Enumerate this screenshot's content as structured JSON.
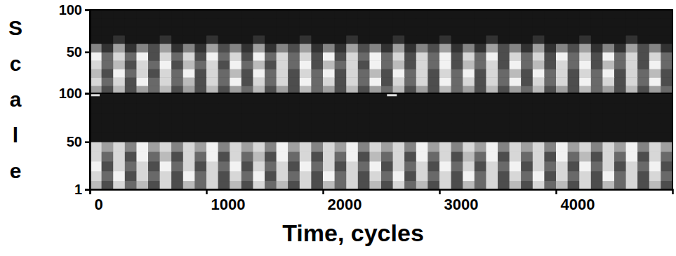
{
  "chart_data": [
    {
      "type": "heatmap",
      "ylabel": "Scale",
      "tick_labels": "y",
      "xlim": [
        0,
        5000
      ],
      "ylim": [
        1,
        100
      ],
      "yticks": [
        50,
        100
      ],
      "x_edges": [
        0,
        100,
        200,
        300,
        400,
        500,
        600,
        700,
        800,
        900,
        1000,
        1100,
        1200,
        1300,
        1400,
        1500,
        1600,
        1700,
        1800,
        1900,
        2000,
        2100,
        2200,
        2300,
        2400,
        2500,
        2600,
        2700,
        2800,
        2900,
        3000,
        3100,
        3200,
        3300,
        3400,
        3500,
        3600,
        3700,
        3800,
        3900,
        4000,
        4100,
        4200,
        4300,
        4400,
        4500,
        4600,
        4700,
        4800,
        4900,
        5000
      ],
      "y_edges": [
        1,
        10,
        20,
        30,
        40,
        50,
        60,
        70,
        80,
        90,
        100
      ],
      "cells": [
        [
          0.6,
          0.3,
          0.7,
          0.3,
          0.6,
          0.4,
          0.7,
          0.3,
          0.6,
          0.3,
          0.7,
          0.3,
          0.6,
          0.4,
          0.7,
          0.3,
          0.6,
          0.3,
          0.7,
          0.4,
          0.6,
          0.3,
          0.7,
          0.3,
          0.6,
          0.4,
          0.7,
          0.3,
          0.6,
          0.3,
          0.7,
          0.4,
          0.6,
          0.3,
          0.7,
          0.3,
          0.6,
          0.4,
          0.7,
          0.3,
          0.6,
          0.3,
          0.7,
          0.4,
          0.6,
          0.3,
          0.7,
          0.3,
          0.6,
          0.4
        ],
        [
          0.8,
          0.4,
          0.8,
          0.3,
          0.9,
          0.4,
          0.8,
          0.4,
          0.7,
          0.3,
          0.8,
          0.4,
          0.9,
          0.3,
          0.8,
          0.4,
          0.8,
          0.3,
          0.9,
          0.4,
          0.8,
          0.3,
          0.8,
          0.4,
          0.9,
          0.3,
          0.8,
          0.4,
          0.8,
          0.3,
          0.9,
          0.4,
          0.8,
          0.3,
          0.8,
          0.4,
          0.9,
          0.3,
          0.8,
          0.4,
          0.8,
          0.3,
          0.9,
          0.4,
          0.8,
          0.3,
          0.8,
          0.4,
          0.9,
          0.3
        ],
        [
          0.7,
          0.3,
          0.9,
          0.4,
          0.8,
          0.3,
          0.8,
          0.4,
          0.9,
          0.3,
          0.8,
          0.4,
          0.7,
          0.3,
          0.9,
          0.4,
          0.8,
          0.3,
          0.8,
          0.4,
          0.9,
          0.3,
          0.8,
          0.4,
          0.7,
          0.3,
          0.9,
          0.4,
          0.8,
          0.3,
          0.8,
          0.4,
          0.9,
          0.3,
          0.8,
          0.4,
          0.7,
          0.3,
          0.9,
          0.4,
          0.8,
          0.3,
          0.8,
          0.4,
          0.9,
          0.3,
          0.8,
          0.4,
          0.7,
          0.3
        ],
        [
          0.8,
          0.4,
          0.7,
          0.3,
          0.8,
          0.4,
          0.9,
          0.3,
          0.7,
          0.4,
          0.8,
          0.3,
          0.9,
          0.4,
          0.7,
          0.3,
          0.8,
          0.4,
          0.9,
          0.3,
          0.7,
          0.4,
          0.8,
          0.3,
          0.9,
          0.4,
          0.7,
          0.3,
          0.8,
          0.4,
          0.9,
          0.3,
          0.7,
          0.4,
          0.8,
          0.3,
          0.9,
          0.4,
          0.7,
          0.3,
          0.8,
          0.4,
          0.9,
          0.3,
          0.7,
          0.4,
          0.8,
          0.3,
          0.9,
          0.4
        ],
        [
          0.9,
          0.4,
          0.8,
          0.4,
          0.9,
          0.3,
          0.8,
          0.4,
          0.8,
          0.3,
          0.9,
          0.4,
          0.8,
          0.3,
          0.9,
          0.4,
          0.8,
          0.4,
          0.8,
          0.3,
          0.9,
          0.3,
          0.8,
          0.4,
          0.9,
          0.4,
          0.8,
          0.3,
          0.8,
          0.4,
          0.9,
          0.3,
          0.8,
          0.4,
          0.9,
          0.3,
          0.8,
          0.4,
          0.8,
          0.3,
          0.9,
          0.4,
          0.8,
          0.3,
          0.9,
          0.4,
          0.8,
          0.3,
          0.8,
          0.4
        ],
        [
          0.5,
          0.2,
          0.6,
          0.2,
          0.5,
          0.3,
          0.6,
          0.2,
          0.5,
          0.2,
          0.6,
          0.3,
          0.5,
          0.2,
          0.6,
          0.2,
          0.5,
          0.3,
          0.6,
          0.2,
          0.5,
          0.2,
          0.6,
          0.3,
          0.5,
          0.2,
          0.6,
          0.2,
          0.5,
          0.3,
          0.6,
          0.2,
          0.5,
          0.2,
          0.6,
          0.3,
          0.5,
          0.2,
          0.6,
          0.2,
          0.5,
          0.3,
          0.6,
          0.2,
          0.5,
          0.2,
          0.6,
          0.3,
          0.5,
          0.2
        ],
        [
          0.1,
          0.1,
          0.2,
          0.1,
          0.1,
          0.1,
          0.2,
          0.1,
          0.1,
          0.1,
          0.2,
          0.1,
          0.1,
          0.1,
          0.2,
          0.1,
          0.1,
          0.1,
          0.2,
          0.1,
          0.1,
          0.1,
          0.2,
          0.1,
          0.1,
          0.1,
          0.2,
          0.1,
          0.1,
          0.1,
          0.2,
          0.1,
          0.1,
          0.1,
          0.2,
          0.1,
          0.1,
          0.1,
          0.2,
          0.1,
          0.1,
          0.1,
          0.2,
          0.1,
          0.1,
          0.1,
          0.2,
          0.1,
          0.1,
          0.1
        ],
        [
          0.1,
          0.1,
          0.1,
          0.1,
          0.1,
          0.1,
          0.1,
          0.1,
          0.1,
          0.1,
          0.1,
          0.1,
          0.1,
          0.1,
          0.1,
          0.1,
          0.1,
          0.1,
          0.1,
          0.1,
          0.1,
          0.1,
          0.1,
          0.1,
          0.1,
          0.1,
          0.1,
          0.1,
          0.1,
          0.1,
          0.1,
          0.1,
          0.1,
          0.1,
          0.1,
          0.1,
          0.1,
          0.1,
          0.1,
          0.1,
          0.1,
          0.1,
          0.1,
          0.1,
          0.1,
          0.1,
          0.1,
          0.1,
          0.1,
          0.1
        ],
        [
          0.1,
          0.1,
          0.1,
          0.1,
          0.1,
          0.1,
          0.1,
          0.1,
          0.1,
          0.1,
          0.1,
          0.1,
          0.1,
          0.1,
          0.1,
          0.1,
          0.1,
          0.1,
          0.1,
          0.1,
          0.1,
          0.1,
          0.1,
          0.1,
          0.1,
          0.1,
          0.1,
          0.1,
          0.1,
          0.1,
          0.1,
          0.1,
          0.1,
          0.1,
          0.1,
          0.1,
          0.1,
          0.1,
          0.1,
          0.1,
          0.1,
          0.1,
          0.1,
          0.1,
          0.1,
          0.1,
          0.1,
          0.1,
          0.1,
          0.1
        ],
        [
          0.1,
          0.1,
          0.1,
          0.1,
          0.1,
          0.1,
          0.1,
          0.1,
          0.1,
          0.1,
          0.1,
          0.1,
          0.1,
          0.1,
          0.1,
          0.1,
          0.1,
          0.1,
          0.1,
          0.1,
          0.1,
          0.1,
          0.1,
          0.1,
          0.1,
          0.1,
          0.1,
          0.1,
          0.1,
          0.1,
          0.1,
          0.1,
          0.1,
          0.1,
          0.1,
          0.1,
          0.1,
          0.1,
          0.1,
          0.1,
          0.1,
          0.1,
          0.1,
          0.1,
          0.1,
          0.1,
          0.1,
          0.1,
          0.1,
          0.1
        ]
      ]
    },
    {
      "type": "heatmap",
      "xlabel": "Time, cycles",
      "xlim": [
        0,
        5000
      ],
      "ylim": [
        1,
        100
      ],
      "xticks": [
        0,
        1000,
        2000,
        3000,
        4000
      ],
      "yticks": [
        1,
        50,
        100
      ],
      "x_edges": [
        0,
        100,
        200,
        300,
        400,
        500,
        600,
        700,
        800,
        900,
        1000,
        1100,
        1200,
        1300,
        1400,
        1500,
        1600,
        1700,
        1800,
        1900,
        2000,
        2100,
        2200,
        2300,
        2400,
        2500,
        2600,
        2700,
        2800,
        2900,
        3000,
        3100,
        3200,
        3300,
        3400,
        3500,
        3600,
        3700,
        3800,
        3900,
        4000,
        4100,
        4200,
        4300,
        4400,
        4500,
        4600,
        4700,
        4800,
        4900,
        5000
      ],
      "y_edges": [
        1,
        10,
        20,
        30,
        40,
        50,
        60,
        70,
        80,
        90,
        100
      ],
      "cells": [
        [
          0.7,
          0.3,
          0.8,
          0.4,
          0.7,
          0.3,
          0.8,
          0.3,
          0.7,
          0.4,
          0.8,
          0.3,
          0.7,
          0.3,
          0.8,
          0.4,
          0.7,
          0.3,
          0.8,
          0.3,
          0.7,
          0.4,
          0.8,
          0.3,
          0.7,
          0.3,
          0.8,
          0.4,
          0.7,
          0.3,
          0.8,
          0.3,
          0.7,
          0.4,
          0.8,
          0.3,
          0.7,
          0.3,
          0.8,
          0.4,
          0.7,
          0.3,
          0.8,
          0.3,
          0.7,
          0.4,
          0.8,
          0.3,
          0.7,
          0.3
        ],
        [
          0.8,
          0.4,
          0.9,
          0.3,
          0.8,
          0.4,
          0.8,
          0.3,
          0.9,
          0.4,
          0.8,
          0.3,
          0.8,
          0.4,
          0.9,
          0.3,
          0.8,
          0.4,
          0.8,
          0.3,
          0.9,
          0.4,
          0.8,
          0.3,
          0.8,
          0.4,
          0.9,
          0.3,
          0.8,
          0.4,
          0.8,
          0.3,
          0.9,
          0.4,
          0.8,
          0.3,
          0.8,
          0.4,
          0.9,
          0.3,
          0.8,
          0.4,
          0.8,
          0.3,
          0.9,
          0.4,
          0.8,
          0.3,
          0.8,
          0.4
        ],
        [
          0.9,
          0.3,
          0.8,
          0.4,
          0.8,
          0.3,
          0.9,
          0.4,
          0.8,
          0.3,
          0.8,
          0.4,
          0.9,
          0.3,
          0.8,
          0.4,
          0.8,
          0.3,
          0.9,
          0.4,
          0.8,
          0.3,
          0.8,
          0.4,
          0.9,
          0.3,
          0.8,
          0.4,
          0.8,
          0.3,
          0.9,
          0.4,
          0.8,
          0.3,
          0.8,
          0.4,
          0.9,
          0.3,
          0.8,
          0.4,
          0.8,
          0.3,
          0.9,
          0.4,
          0.8,
          0.3,
          0.8,
          0.4,
          0.9,
          0.3
        ],
        [
          0.8,
          0.4,
          0.8,
          0.3,
          0.9,
          0.4,
          0.7,
          0.3,
          0.8,
          0.4,
          0.9,
          0.3,
          0.8,
          0.4,
          0.7,
          0.3,
          0.9,
          0.4,
          0.8,
          0.3,
          0.8,
          0.4,
          0.9,
          0.3,
          0.7,
          0.4,
          0.8,
          0.3,
          0.9,
          0.4,
          0.8,
          0.3,
          0.7,
          0.4,
          0.9,
          0.3,
          0.8,
          0.4,
          0.8,
          0.3,
          0.9,
          0.4,
          0.7,
          0.3,
          0.8,
          0.4,
          0.9,
          0.3,
          0.8,
          0.4
        ],
        [
          0.8,
          0.6,
          0.8,
          0.5,
          0.9,
          0.6,
          0.8,
          0.5,
          0.8,
          0.6,
          0.9,
          0.5,
          0.8,
          0.6,
          0.8,
          0.5,
          0.9,
          0.6,
          0.8,
          0.5,
          0.8,
          0.6,
          0.9,
          0.5,
          0.8,
          0.6,
          0.8,
          0.5,
          0.9,
          0.6,
          0.8,
          0.5,
          0.8,
          0.6,
          0.9,
          0.5,
          0.8,
          0.6,
          0.8,
          0.5,
          0.9,
          0.6,
          0.8,
          0.5,
          0.8,
          0.6,
          0.9,
          0.5,
          0.8,
          0.6
        ],
        [
          0.1,
          0.1,
          0.1,
          0.1,
          0.1,
          0.1,
          0.1,
          0.1,
          0.1,
          0.1,
          0.1,
          0.1,
          0.1,
          0.1,
          0.1,
          0.1,
          0.1,
          0.1,
          0.1,
          0.1,
          0.1,
          0.1,
          0.1,
          0.1,
          0.1,
          0.1,
          0.1,
          0.1,
          0.1,
          0.1,
          0.1,
          0.1,
          0.1,
          0.1,
          0.1,
          0.1,
          0.1,
          0.1,
          0.1,
          0.1,
          0.1,
          0.1,
          0.1,
          0.1,
          0.1,
          0.1,
          0.1,
          0.1,
          0.1,
          0.1
        ],
        [
          0.1,
          0.1,
          0.1,
          0.1,
          0.1,
          0.1,
          0.1,
          0.1,
          0.1,
          0.1,
          0.1,
          0.1,
          0.1,
          0.1,
          0.1,
          0.1,
          0.1,
          0.1,
          0.1,
          0.1,
          0.1,
          0.1,
          0.1,
          0.1,
          0.1,
          0.1,
          0.1,
          0.1,
          0.1,
          0.1,
          0.1,
          0.1,
          0.1,
          0.1,
          0.1,
          0.1,
          0.1,
          0.1,
          0.1,
          0.1,
          0.1,
          0.1,
          0.1,
          0.1,
          0.1,
          0.1,
          0.1,
          0.1,
          0.1,
          0.1
        ],
        [
          0.1,
          0.1,
          0.1,
          0.1,
          0.1,
          0.1,
          0.1,
          0.1,
          0.1,
          0.1,
          0.1,
          0.1,
          0.1,
          0.1,
          0.1,
          0.1,
          0.1,
          0.1,
          0.1,
          0.1,
          0.1,
          0.1,
          0.1,
          0.1,
          0.1,
          0.1,
          0.1,
          0.1,
          0.1,
          0.1,
          0.1,
          0.1,
          0.1,
          0.1,
          0.1,
          0.1,
          0.1,
          0.1,
          0.1,
          0.1,
          0.1,
          0.1,
          0.1,
          0.1,
          0.1,
          0.1,
          0.1,
          0.1,
          0.1,
          0.1
        ],
        [
          0.1,
          0.1,
          0.1,
          0.1,
          0.1,
          0.1,
          0.1,
          0.1,
          0.1,
          0.1,
          0.1,
          0.1,
          0.1,
          0.1,
          0.1,
          0.1,
          0.1,
          0.1,
          0.1,
          0.1,
          0.1,
          0.1,
          0.1,
          0.1,
          0.1,
          0.1,
          0.1,
          0.1,
          0.1,
          0.1,
          0.1,
          0.1,
          0.1,
          0.1,
          0.1,
          0.1,
          0.1,
          0.1,
          0.1,
          0.1,
          0.1,
          0.1,
          0.1,
          0.1,
          0.1,
          0.1,
          0.1,
          0.1,
          0.1,
          0.1
        ],
        [
          0.1,
          0.1,
          0.1,
          0.1,
          0.1,
          0.1,
          0.1,
          0.1,
          0.1,
          0.1,
          0.1,
          0.1,
          0.1,
          0.1,
          0.1,
          0.1,
          0.1,
          0.1,
          0.1,
          0.1,
          0.1,
          0.1,
          0.1,
          0.1,
          0.1,
          0.1,
          0.1,
          0.1,
          0.1,
          0.1,
          0.1,
          0.1,
          0.1,
          0.1,
          0.1,
          0.1,
          0.1,
          0.1,
          0.1,
          0.1,
          0.1,
          0.1,
          0.1,
          0.1,
          0.1,
          0.1,
          0.1,
          0.1,
          0.1,
          0.1
        ]
      ],
      "events": [
        {
          "x": 0,
          "y": 98
        },
        {
          "x": 2550,
          "y": 98
        }
      ]
    }
  ]
}
